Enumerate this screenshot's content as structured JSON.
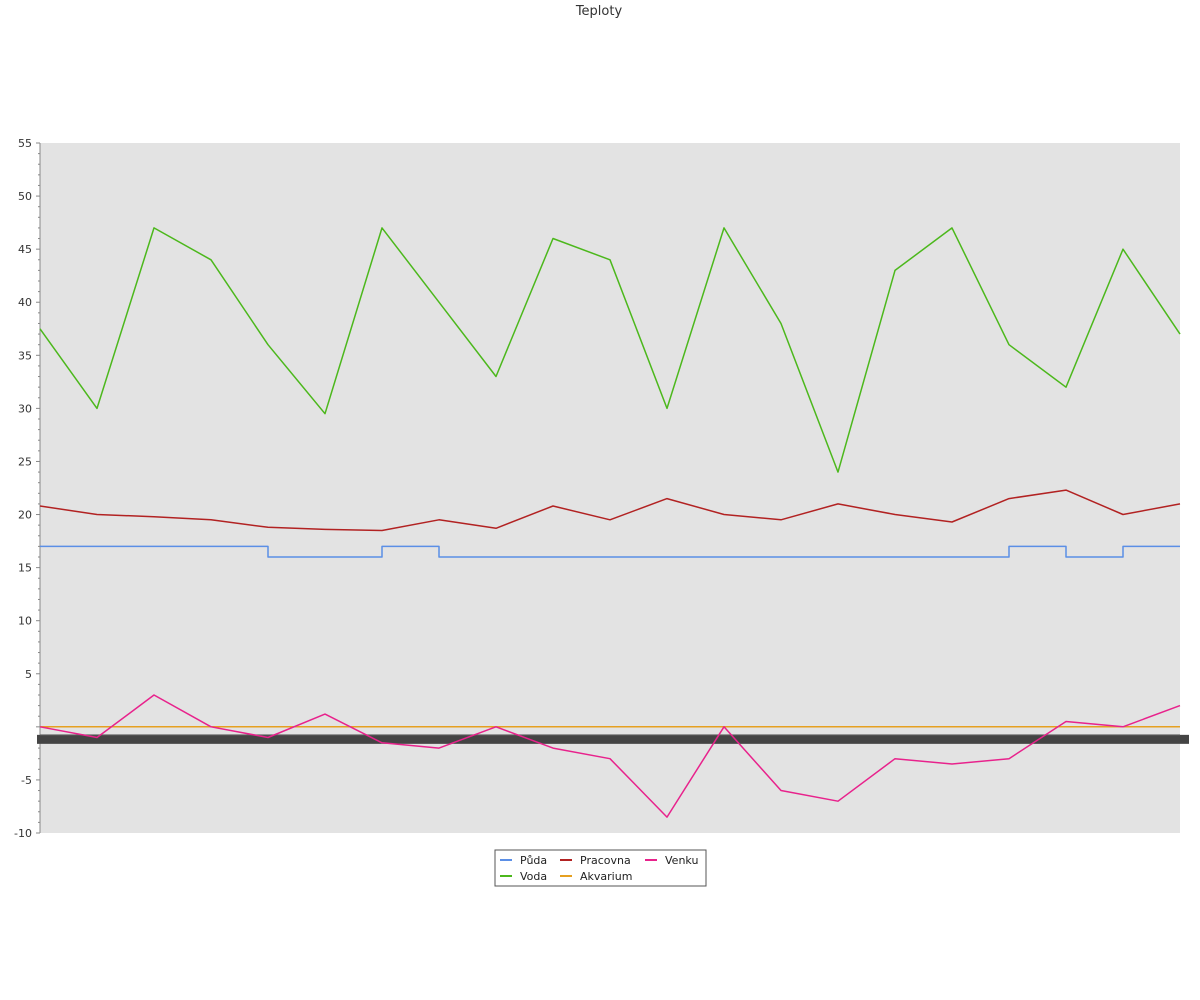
{
  "chart_data": {
    "type": "line",
    "title": "Teploty",
    "xlabel": "",
    "ylabel": "",
    "ylim": [
      -10,
      55
    ],
    "y_ticks": [
      55,
      50,
      45,
      40,
      35,
      30,
      25,
      20,
      15,
      10,
      5,
      -5,
      -10
    ],
    "grid": false,
    "legend_position": "bottom-center",
    "plot_background": "#e3e3e3",
    "x": [
      0,
      5,
      10,
      15,
      20,
      25,
      30,
      35,
      40,
      45,
      50,
      55,
      60,
      65,
      70,
      75,
      80,
      85,
      90,
      95,
      100
    ],
    "series": [
      {
        "name": "Půda",
        "color": "#5b8fe6",
        "values": [
          17,
          17,
          17,
          17,
          16,
          16,
          17,
          16,
          16,
          16,
          16,
          16,
          16,
          16,
          16,
          16,
          16,
          17,
          16,
          17,
          17
        ]
      },
      {
        "name": "Voda",
        "color": "#4cb81c",
        "values": [
          37.5,
          30,
          47,
          44,
          36,
          29.5,
          47,
          40,
          33,
          46,
          44,
          30,
          47,
          38,
          24,
          43,
          47,
          36,
          32,
          45,
          37
        ]
      },
      {
        "name": "Pracovna",
        "color": "#b22222",
        "values": [
          20.8,
          20.0,
          19.8,
          19.5,
          18.8,
          18.6,
          18.5,
          19.5,
          18.7,
          20.8,
          19.5,
          21.5,
          20.0,
          19.5,
          21.0,
          20.0,
          19.3,
          21.5,
          22.3,
          20.0,
          21.0
        ]
      },
      {
        "name": "Akvarium",
        "color": "#e6a020",
        "values": [
          0,
          0,
          0,
          0,
          0,
          0,
          0,
          0,
          0,
          0,
          0,
          0,
          0,
          0,
          0,
          0,
          0,
          0,
          0,
          0,
          0
        ]
      },
      {
        "name": "Venku",
        "color": "#e8228c",
        "values": [
          0,
          -1,
          3,
          0,
          -1,
          1.2,
          -1.5,
          -2,
          0,
          -2,
          -3,
          -8.5,
          0,
          -6,
          -7,
          -3,
          -3.5,
          -3,
          0.5,
          0,
          2
        ]
      }
    ],
    "legend": [
      {
        "name": "Půda",
        "color": "#5b8fe6"
      },
      {
        "name": "Pracovna",
        "color": "#b22222"
      },
      {
        "name": "Venku",
        "color": "#e8228c"
      },
      {
        "name": "Voda",
        "color": "#4cb81c"
      },
      {
        "name": "Akvarium",
        "color": "#e6a020"
      }
    ]
  }
}
